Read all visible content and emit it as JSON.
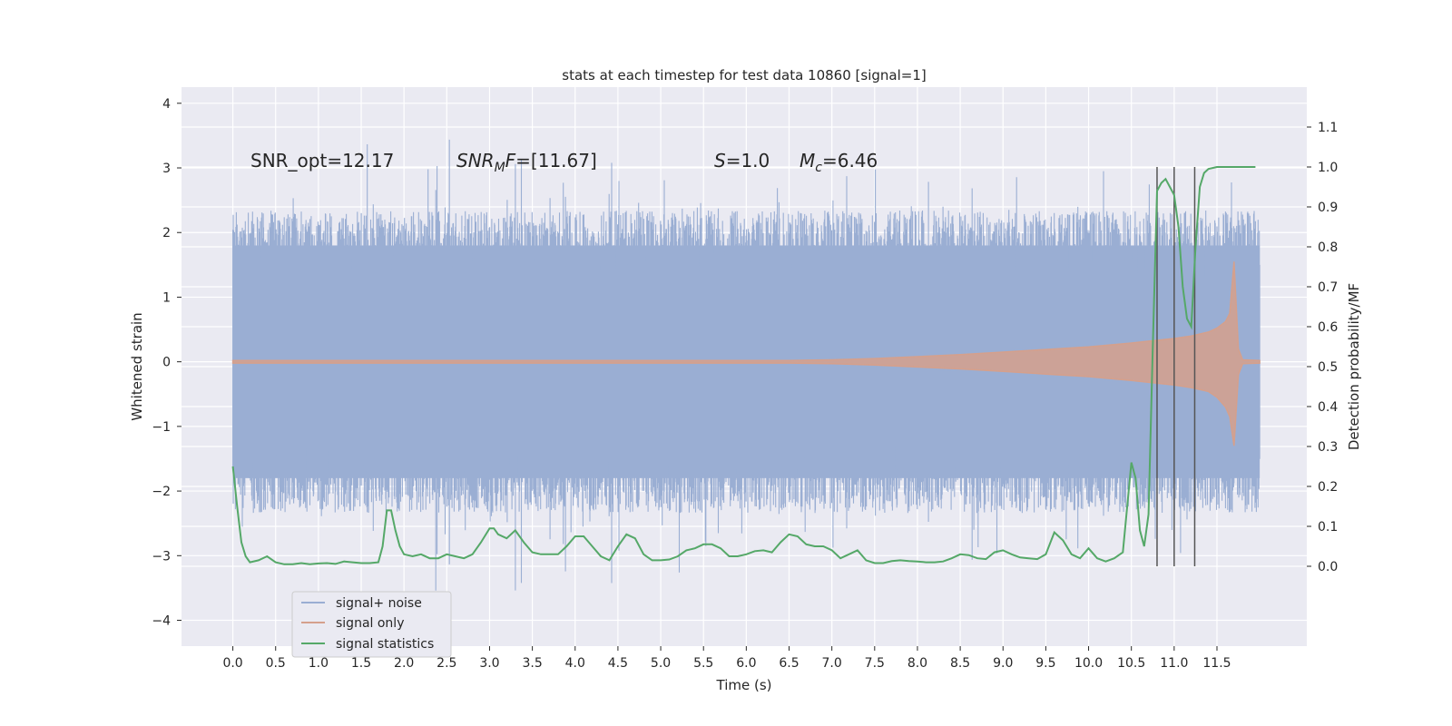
{
  "chart_data": {
    "type": "line",
    "title": "stats at each timestep for test data 10860 [signal=1]",
    "xlabel": "Time (s)",
    "ylabel": "Whitened strain",
    "y2label": "Detection probability/MF",
    "xlim": [
      -0.6,
      12.55
    ],
    "ylim": [
      -4.4,
      4.25
    ],
    "y2lim": [
      -0.2,
      1.2
    ],
    "x_ticks": [
      0.0,
      0.5,
      1.0,
      1.5,
      2.0,
      2.5,
      3.0,
      3.5,
      4.0,
      4.5,
      5.0,
      5.5,
      6.0,
      6.5,
      7.0,
      7.5,
      8.0,
      8.5,
      9.0,
      9.5,
      10.0,
      10.5,
      11.0,
      11.5
    ],
    "x_tick_labels": [
      "0.0",
      "0.5",
      "1.0",
      "1.5",
      "2.0",
      "2.5",
      "3.0",
      "3.5",
      "4.0",
      "4.5",
      "5.0",
      "5.5",
      "6.0",
      "6.5",
      "7.0",
      "7.5",
      "8.0",
      "8.5",
      "9.0",
      "9.5",
      "10.0",
      "10.5",
      "11.0",
      "11.5"
    ],
    "y_ticks": [
      -4,
      -3,
      -2,
      -1,
      0,
      1,
      2,
      3,
      4
    ],
    "y_tick_labels": [
      "−4",
      "−3",
      "−2",
      "−1",
      "0",
      "1",
      "2",
      "3",
      "4"
    ],
    "y2_ticks": [
      0.0,
      0.1,
      0.2,
      0.3,
      0.4,
      0.5,
      0.6,
      0.7,
      0.8,
      0.9,
      1.0,
      1.1
    ],
    "y2_tick_labels": [
      "0.0",
      "0.1",
      "0.2",
      "0.3",
      "0.4",
      "0.5",
      "0.6",
      "0.7",
      "0.8",
      "0.9",
      "1.0",
      "1.1"
    ],
    "grid": true,
    "legend_position": "lower-left",
    "legend": [
      "signal+ noise",
      "signal only",
      "signal statistics"
    ],
    "colors": {
      "noise": "#9aaed3",
      "signal": "#d5a08c",
      "stats": "#55a868",
      "vline": "#555555",
      "plot_bg": "#eaeaf2",
      "grid": "#ffffff"
    },
    "annotations": {
      "snr_opt": "SNR_opt=12.17",
      "snr_mf_sym": "SNR",
      "snr_mf_sub": "M",
      "snr_mf_tail": "F",
      "snr_mf_value": "=[11.67]",
      "s_sym": "S",
      "s_value": "=1.0",
      "mc_sym": "M",
      "mc_sub": "c",
      "mc_value": "=6.46"
    },
    "series": [
      {
        "name": "signal+ noise",
        "kind": "noise-band",
        "x_range": [
          0.0,
          12.0
        ],
        "typical_amplitude": 1.8,
        "peak_max": 3.9,
        "peak_min": -4.1
      },
      {
        "name": "signal only",
        "kind": "chirp-envelope",
        "x": [
          0.0,
          6.5,
          7.0,
          7.5,
          8.0,
          8.5,
          9.0,
          9.5,
          10.0,
          10.5,
          11.0,
          11.2,
          11.4,
          11.5,
          11.6,
          11.65,
          11.7,
          11.75,
          11.8,
          12.0
        ],
        "upper": [
          0.02,
          0.02,
          0.03,
          0.05,
          0.08,
          0.11,
          0.15,
          0.19,
          0.23,
          0.29,
          0.36,
          0.4,
          0.46,
          0.52,
          0.62,
          0.75,
          1.55,
          0.2,
          0.03,
          0.02
        ],
        "lower": [
          -0.02,
          -0.02,
          -0.03,
          -0.05,
          -0.08,
          -0.11,
          -0.15,
          -0.19,
          -0.23,
          -0.29,
          -0.36,
          -0.4,
          -0.46,
          -0.55,
          -0.7,
          -0.85,
          -1.3,
          -0.2,
          -0.03,
          -0.02
        ]
      },
      {
        "name": "signal statistics",
        "kind": "line-secondary-axis",
        "x": [
          0.0,
          0.05,
          0.1,
          0.15,
          0.2,
          0.3,
          0.4,
          0.5,
          0.6,
          0.7,
          0.8,
          0.9,
          1.0,
          1.1,
          1.2,
          1.3,
          1.4,
          1.5,
          1.6,
          1.7,
          1.75,
          1.8,
          1.85,
          1.9,
          1.95,
          2.0,
          2.1,
          2.2,
          2.3,
          2.4,
          2.5,
          2.6,
          2.7,
          2.8,
          2.9,
          3.0,
          3.05,
          3.1,
          3.2,
          3.3,
          3.4,
          3.5,
          3.6,
          3.7,
          3.8,
          3.9,
          4.0,
          4.1,
          4.2,
          4.3,
          4.4,
          4.5,
          4.6,
          4.7,
          4.8,
          4.9,
          5.0,
          5.1,
          5.2,
          5.3,
          5.4,
          5.5,
          5.6,
          5.7,
          5.8,
          5.9,
          6.0,
          6.1,
          6.2,
          6.3,
          6.4,
          6.5,
          6.6,
          6.7,
          6.8,
          6.9,
          7.0,
          7.1,
          7.2,
          7.3,
          7.4,
          7.5,
          7.6,
          7.7,
          7.8,
          7.9,
          8.0,
          8.1,
          8.2,
          8.3,
          8.4,
          8.5,
          8.6,
          8.7,
          8.8,
          8.9,
          9.0,
          9.1,
          9.2,
          9.3,
          9.4,
          9.5,
          9.6,
          9.7,
          9.8,
          9.9,
          10.0,
          10.1,
          10.2,
          10.3,
          10.4,
          10.5,
          10.55,
          10.6,
          10.65,
          10.7,
          10.75,
          10.8,
          10.85,
          10.9,
          10.95,
          11.0,
          11.05,
          11.1,
          11.15,
          11.2,
          11.25,
          11.3,
          11.35,
          11.4,
          11.5,
          11.6,
          11.7,
          11.8,
          11.95
        ],
        "y": [
          0.25,
          0.15,
          0.06,
          0.025,
          0.01,
          0.015,
          0.025,
          0.01,
          0.005,
          0.005,
          0.008,
          0.005,
          0.007,
          0.008,
          0.006,
          0.012,
          0.01,
          0.008,
          0.008,
          0.01,
          0.05,
          0.14,
          0.14,
          0.09,
          0.05,
          0.03,
          0.025,
          0.03,
          0.02,
          0.02,
          0.03,
          0.025,
          0.02,
          0.03,
          0.06,
          0.095,
          0.095,
          0.08,
          0.07,
          0.09,
          0.06,
          0.035,
          0.03,
          0.03,
          0.03,
          0.05,
          0.075,
          0.075,
          0.05,
          0.025,
          0.015,
          0.05,
          0.08,
          0.07,
          0.03,
          0.015,
          0.015,
          0.017,
          0.025,
          0.04,
          0.045,
          0.055,
          0.055,
          0.045,
          0.025,
          0.025,
          0.03,
          0.038,
          0.04,
          0.035,
          0.06,
          0.08,
          0.075,
          0.055,
          0.05,
          0.05,
          0.04,
          0.02,
          0.03,
          0.04,
          0.015,
          0.008,
          0.008,
          0.013,
          0.015,
          0.013,
          0.012,
          0.01,
          0.01,
          0.012,
          0.02,
          0.03,
          0.028,
          0.02,
          0.018,
          0.035,
          0.04,
          0.03,
          0.022,
          0.02,
          0.018,
          0.03,
          0.085,
          0.065,
          0.03,
          0.02,
          0.045,
          0.02,
          0.012,
          0.02,
          0.035,
          0.26,
          0.22,
          0.09,
          0.05,
          0.13,
          0.55,
          0.94,
          0.96,
          0.97,
          0.95,
          0.93,
          0.85,
          0.7,
          0.62,
          0.6,
          0.8,
          0.95,
          0.985,
          0.995,
          1.0,
          1.0,
          1.0,
          1.0,
          1.0
        ]
      }
    ],
    "vertical_lines_x": [
      10.8,
      11.0,
      11.24
    ]
  }
}
